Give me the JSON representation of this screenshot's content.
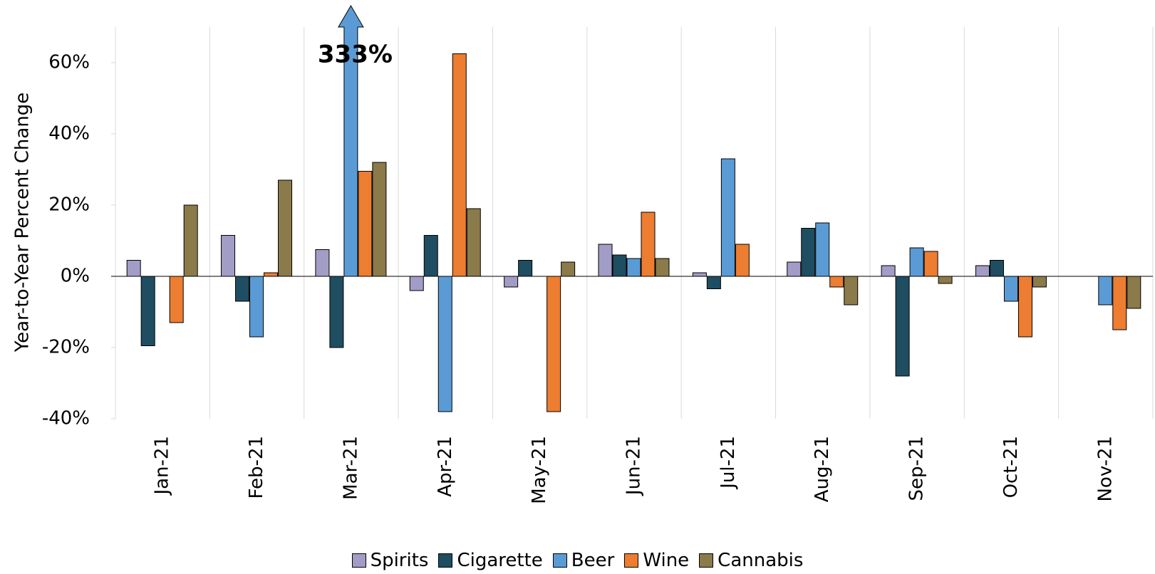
{
  "chart_data": {
    "type": "bar",
    "y_label": "Year-to-Year Percent Change",
    "categories": [
      "Jan-21",
      "Feb-21",
      "Mar-21",
      "Apr-21",
      "May-21",
      "Jun-21",
      "Jul-21",
      "Aug-21",
      "Sep-21",
      "Oct-21",
      "Nov-21"
    ],
    "series": [
      {
        "name": "Spirits",
        "color": "#a29dc6",
        "values": [
          4.5,
          11.5,
          7.5,
          -4,
          -3,
          9,
          1,
          4,
          3,
          3,
          null
        ]
      },
      {
        "name": "Cigarette",
        "color": "#1f4d62",
        "values": [
          -19.5,
          -7,
          -20,
          11.5,
          4.5,
          6,
          -3.5,
          13.5,
          -28,
          4.5,
          null
        ]
      },
      {
        "name": "Beer",
        "color": "#5b9bd5",
        "values": [
          null,
          -17,
          333,
          -38,
          null,
          5,
          33,
          15,
          8,
          -7,
          -8
        ],
        "value_labels": [
          null,
          null,
          "333%",
          null,
          null,
          null,
          null,
          null,
          null,
          null,
          null
        ]
      },
      {
        "name": "Wine",
        "color": "#ed7d31",
        "values": [
          -13,
          1,
          29.5,
          62.5,
          -38,
          18,
          9,
          -3,
          7,
          -17,
          -15
        ]
      },
      {
        "name": "Cannabis",
        "color": "#8b7a4a",
        "values": [
          20,
          27,
          32,
          19,
          4,
          5,
          null,
          -8,
          -2,
          -3,
          -9
        ]
      }
    ],
    "ylim": [
      -40,
      70
    ],
    "yticks": [
      {
        "value": -40,
        "label": "-40%"
      },
      {
        "value": -20,
        "label": "-20%"
      },
      {
        "value": 0,
        "label": "0%"
      },
      {
        "value": 20,
        "label": "20%"
      },
      {
        "value": 40,
        "label": "40%"
      },
      {
        "value": 60,
        "label": "60%"
      }
    ],
    "grid": false,
    "legend": "bottom"
  }
}
